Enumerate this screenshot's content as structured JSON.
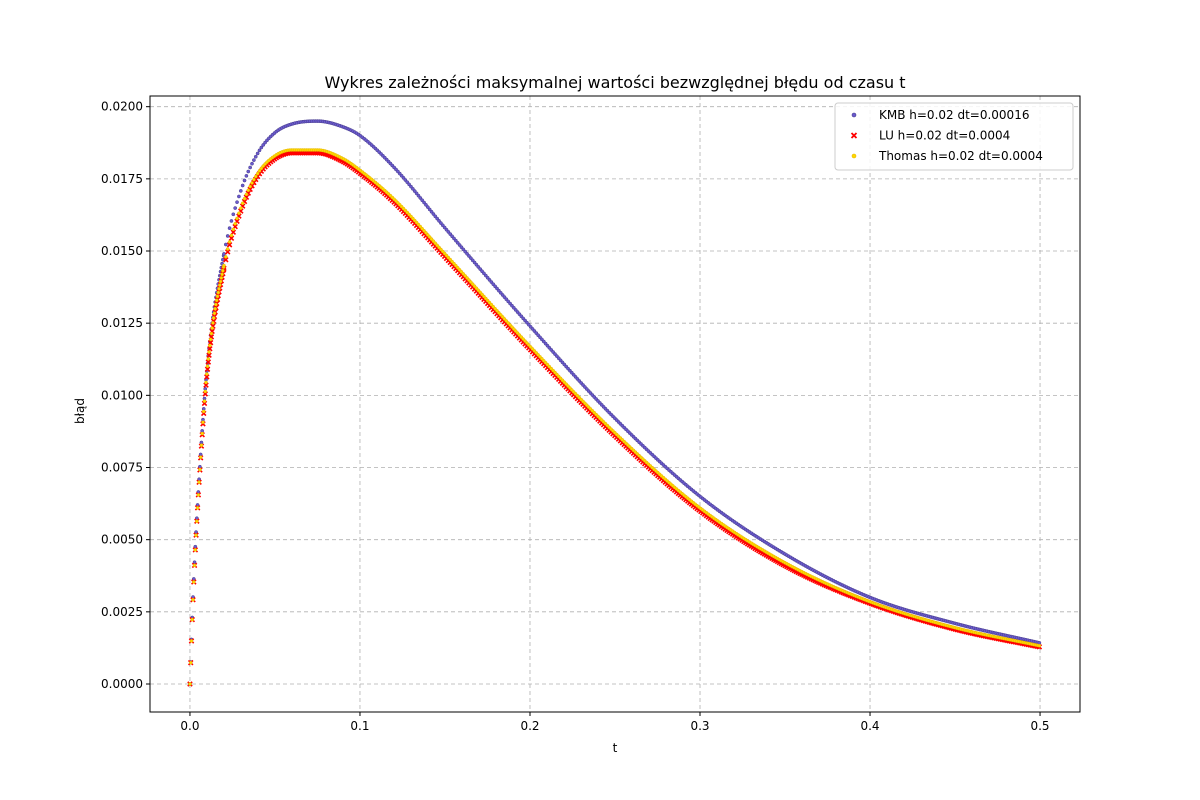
{
  "chart_data": {
    "type": "scatter",
    "title": "Wykres zależności maksymalnej wartości bezwzględnej błędu od czasu t",
    "xlabel": "t",
    "ylabel": "błąd",
    "xlim": [
      -0.0235,
      0.5235
    ],
    "ylim": [
      -0.00097,
      0.02037
    ],
    "xticks": [
      0.0,
      0.1,
      0.2,
      0.3,
      0.4,
      0.5
    ],
    "xtick_labels": [
      "0.0",
      "0.1",
      "0.2",
      "0.3",
      "0.4",
      "0.5"
    ],
    "yticks": [
      0.0,
      0.0025,
      0.005,
      0.0075,
      0.01,
      0.0125,
      0.015,
      0.0175,
      0.02
    ],
    "ytick_labels": [
      "0.0000",
      "0.0025",
      "0.0050",
      "0.0075",
      "0.0100",
      "0.0125",
      "0.0150",
      "0.0175",
      "0.0200"
    ],
    "grid": true,
    "legend_position": "top-right",
    "series": [
      {
        "name": "KMB h=0.02 dt=0.00016",
        "color": "#6a5acd",
        "marker": "circle",
        "points": [
          [
            0.0,
            0.0
          ],
          [
            0.002,
            0.0033
          ],
          [
            0.005,
            0.0067
          ],
          [
            0.01,
            0.0109
          ],
          [
            0.02,
            0.0149
          ],
          [
            0.03,
            0.0171
          ],
          [
            0.04,
            0.0184
          ],
          [
            0.05,
            0.0191
          ],
          [
            0.06,
            0.0194
          ],
          [
            0.075,
            0.0195
          ],
          [
            0.09,
            0.0193
          ],
          [
            0.1,
            0.019
          ],
          [
            0.12,
            0.0179
          ],
          [
            0.15,
            0.0158
          ],
          [
            0.2,
            0.0124
          ],
          [
            0.25,
            0.0092
          ],
          [
            0.3,
            0.0065
          ],
          [
            0.35,
            0.0045
          ],
          [
            0.4,
            0.003
          ],
          [
            0.45,
            0.0021
          ],
          [
            0.5,
            0.00142
          ]
        ]
      },
      {
        "name": "LU h=0.02 dt=0.0004",
        "color": "#ff0000",
        "marker": "x",
        "points": [
          [
            0.0,
            0.0
          ],
          [
            0.002,
            0.0032
          ],
          [
            0.005,
            0.0066
          ],
          [
            0.01,
            0.0107
          ],
          [
            0.02,
            0.0144
          ],
          [
            0.03,
            0.0164
          ],
          [
            0.04,
            0.0176
          ],
          [
            0.05,
            0.0182
          ],
          [
            0.06,
            0.0184
          ],
          [
            0.075,
            0.0184
          ],
          [
            0.09,
            0.0181
          ],
          [
            0.1,
            0.0177
          ],
          [
            0.12,
            0.0167
          ],
          [
            0.15,
            0.0148
          ],
          [
            0.2,
            0.0116
          ],
          [
            0.25,
            0.0086
          ],
          [
            0.3,
            0.006
          ],
          [
            0.35,
            0.0041
          ],
          [
            0.4,
            0.0028
          ],
          [
            0.45,
            0.0019
          ],
          [
            0.5,
            0.00128
          ]
        ]
      },
      {
        "name": "Thomas h=0.02 dt=0.0004",
        "color": "#ffd700",
        "marker": "circle",
        "points": [
          [
            0.0,
            0.0
          ],
          [
            0.002,
            0.0032
          ],
          [
            0.005,
            0.0066
          ],
          [
            0.01,
            0.0108
          ],
          [
            0.02,
            0.0145
          ],
          [
            0.03,
            0.0165
          ],
          [
            0.04,
            0.0177
          ],
          [
            0.05,
            0.0183
          ],
          [
            0.06,
            0.0185
          ],
          [
            0.075,
            0.0185
          ],
          [
            0.09,
            0.0182
          ],
          [
            0.1,
            0.0178
          ],
          [
            0.12,
            0.0168
          ],
          [
            0.15,
            0.0149
          ],
          [
            0.2,
            0.0117
          ],
          [
            0.25,
            0.0087
          ],
          [
            0.3,
            0.0061
          ],
          [
            0.35,
            0.0042
          ],
          [
            0.4,
            0.00285
          ],
          [
            0.45,
            0.00195
          ],
          [
            0.5,
            0.00132
          ]
        ]
      }
    ]
  }
}
